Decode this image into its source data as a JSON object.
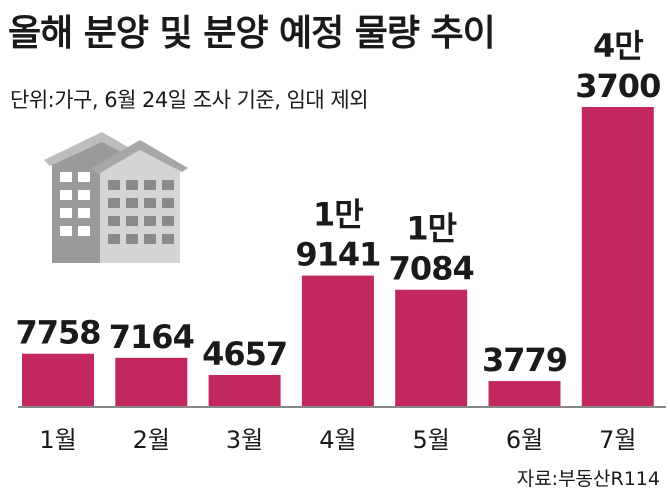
{
  "chart_data": {
    "type": "bar",
    "title": "올해 분양 및 분양 예정 물량 추이",
    "subtitle": "단위:가구, 6월 24일 조사 기준, 임대 제외",
    "source": "자료:부동산R114",
    "categories": [
      "1월",
      "2월",
      "3월",
      "4월",
      "5월",
      "6월",
      "7월"
    ],
    "values": [
      7758,
      7164,
      4657,
      19141,
      17084,
      3779,
      43700
    ],
    "value_labels": [
      [
        "7758"
      ],
      [
        "7164"
      ],
      [
        "4657"
      ],
      [
        "1만",
        "9141"
      ],
      [
        "1만",
        "7084"
      ],
      [
        "3779"
      ],
      [
        "4만",
        "3700"
      ]
    ],
    "ylim": [
      0,
      43700
    ],
    "grid": false,
    "legend": false,
    "colors": {
      "bar": "#c3275f",
      "text": "#1a1a1a",
      "axis": "#888888",
      "building": "#9a9a9a"
    },
    "icons": [
      "building-icon"
    ]
  }
}
